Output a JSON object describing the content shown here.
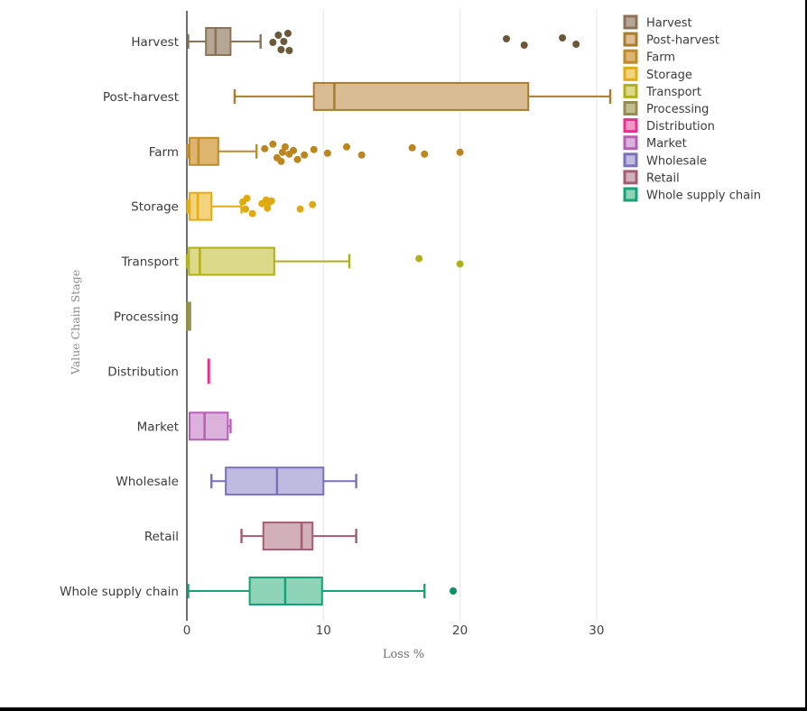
{
  "chart_data": {
    "type": "boxplot-horizontal",
    "title": "",
    "xlabel": "Loss %",
    "ylabel": "Value Chain Stage",
    "xlim": [
      0,
      31.5
    ],
    "x_ticks": [
      0,
      10,
      20,
      30
    ],
    "grid": true,
    "legend_position": "right",
    "axis_color": "#4a4a4a",
    "grid_color": "#ececec",
    "categories": [
      "Harvest",
      "Post-harvest",
      "Farm",
      "Storage",
      "Transport",
      "Processing",
      "Distribution",
      "Market",
      "Wholesale",
      "Retail",
      "Whole supply chain"
    ],
    "series": [
      {
        "name": "Harvest",
        "fill": "#b5a695",
        "stroke": "#8c7355",
        "point_color": "#6b5838",
        "box": {
          "lo": 0.1,
          "q1": 1.4,
          "med": 2.1,
          "q3": 3.2,
          "hi": 5.4
        },
        "outliers": [
          [
            6.3,
            1
          ],
          [
            6.7,
            -7
          ],
          [
            7.4,
            -9
          ],
          [
            6.9,
            9
          ],
          [
            7.5,
            10
          ],
          [
            7.1,
            0
          ],
          [
            23.4,
            -3
          ],
          [
            24.7,
            4
          ],
          [
            27.5,
            -4
          ],
          [
            28.5,
            3
          ]
        ]
      },
      {
        "name": "Post-harvest",
        "fill": "#d9bc94",
        "stroke": "#ab7b2c",
        "point_color": "#ab7b2c",
        "box": {
          "lo": 3.5,
          "q1": 9.3,
          "med": 10.8,
          "q3": 25.0,
          "hi": 31.0
        },
        "outliers": []
      },
      {
        "name": "Farm",
        "fill": "#ddb570",
        "stroke": "#c08a28",
        "point_color": "#bb861e",
        "box": {
          "lo": 0.05,
          "q1": 0.2,
          "med": 0.85,
          "q3": 2.3,
          "hi": 5.1
        },
        "outliers": [
          [
            5.7,
            -3
          ],
          [
            6.3,
            -8
          ],
          [
            6.6,
            7
          ],
          [
            6.9,
            11
          ],
          [
            7.0,
            1
          ],
          [
            7.2,
            -5
          ],
          [
            7.5,
            3
          ],
          [
            7.8,
            -1
          ],
          [
            8.1,
            9
          ],
          [
            8.6,
            4
          ],
          [
            9.3,
            -2
          ],
          [
            10.3,
            2
          ],
          [
            11.7,
            -5
          ],
          [
            12.8,
            4
          ],
          [
            16.5,
            -4
          ],
          [
            17.4,
            3
          ],
          [
            20.0,
            1
          ]
        ]
      },
      {
        "name": "Storage",
        "fill": "#f3d47c",
        "stroke": "#e3ac12",
        "point_color": "#e0a90e",
        "box": {
          "lo": 0.05,
          "q1": 0.2,
          "med": 0.8,
          "q3": 1.8,
          "hi": 4.0
        },
        "outliers": [
          [
            4.1,
            -5
          ],
          [
            4.4,
            -9
          ],
          [
            4.3,
            3
          ],
          [
            4.8,
            8
          ],
          [
            5.5,
            -3
          ],
          [
            5.8,
            -7
          ],
          [
            6.0,
            -4
          ],
          [
            5.9,
            2
          ],
          [
            6.2,
            -6
          ],
          [
            8.3,
            3
          ],
          [
            9.2,
            -2
          ]
        ]
      },
      {
        "name": "Transport",
        "fill": "#dcda88",
        "stroke": "#b2b019",
        "point_color": "#b2b019",
        "box": {
          "lo": 0.0,
          "q1": 0.15,
          "med": 0.95,
          "q3": 6.4,
          "hi": 11.9
        },
        "outliers": [
          [
            17.0,
            -3
          ],
          [
            20.0,
            3
          ]
        ]
      },
      {
        "name": "Processing",
        "fill": "#c2bd8f",
        "stroke": "#948e4e",
        "point_color": "#948e4e",
        "box": {
          "lo": 0.0,
          "q1": 0.0,
          "med": 0.1,
          "q3": 0.25,
          "hi": 0.3
        },
        "outliers": []
      },
      {
        "name": "Distribution",
        "fill": "#f097c5",
        "stroke": "#ea2f8f",
        "point_color": "#ea2f8f",
        "box": {
          "lo": 1.6,
          "q1": 1.6,
          "med": 1.6,
          "q3": 1.6,
          "hi": 1.6
        },
        "outliers": []
      },
      {
        "name": "Market",
        "fill": "#dcb2dc",
        "stroke": "#b55fb5",
        "point_color": "#b55fb5",
        "box": {
          "lo": 0.2,
          "q1": 0.2,
          "med": 1.3,
          "q3": 3.0,
          "hi": 3.2
        },
        "outliers": []
      },
      {
        "name": "Wholesale",
        "fill": "#bfbadf",
        "stroke": "#7a70bb",
        "point_color": "#7a70bb",
        "box": {
          "lo": 1.8,
          "q1": 2.85,
          "med": 6.6,
          "q3": 10.0,
          "hi": 12.4
        },
        "outliers": []
      },
      {
        "name": "Retail",
        "fill": "#d2b0ba",
        "stroke": "#a55b73",
        "point_color": "#a55b73",
        "box": {
          "lo": 4.0,
          "q1": 5.6,
          "med": 8.4,
          "q3": 9.2,
          "hi": 12.4
        },
        "outliers": []
      },
      {
        "name": "Whole supply chain",
        "fill": "#8ed3b8",
        "stroke": "#13a377",
        "point_color": "#0f8f67",
        "box": {
          "lo": 0.1,
          "q1": 4.6,
          "med": 7.2,
          "q3": 9.9,
          "hi": 17.4
        },
        "outliers": [
          [
            19.5,
            0
          ]
        ]
      }
    ]
  }
}
